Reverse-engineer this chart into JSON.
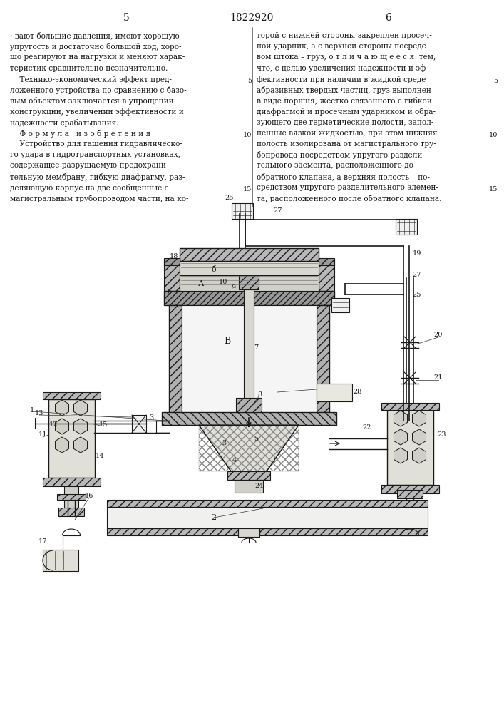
{
  "page_number_left": "5",
  "patent_number": "1822920",
  "page_number_right": "6",
  "bg_color": "#ffffff",
  "text_color": "#1a1a1a",
  "line_color": "#1a1a1a",
  "left_col_text": [
    "· вают большие давления, имеют хорошую",
    "упругость и достаточно большой ход, хоро-",
    "шо реагируют на нагрузки и меняют харак-",
    "теристик сравнительно незначительно.",
    "    Технико-экономический эффект пред-",
    "ложенного устройства по сравнению с базо-",
    "вым объектом заключается в упрощении",
    "конструкции, увеличении эффективности и",
    "надежности срабатывания.",
    "    Ф о р м у л а   и з о б р е т е н и я",
    "    Устройство для гашения гидравлическо-",
    "го удара в гидротранспортных установках,",
    "содержащее разрушаемую предохрани-",
    "тельную мембрану, гибкую диафрагму, раз-",
    "деляющую корпус на две сообщенные с",
    "магистральным трубопроводом части, на ко-"
  ],
  "right_col_text": [
    "торой с нижней стороны закреплен просеч-",
    "ной ударник, а с верхней стороны посредс-",
    "вом штока – груз, о т л и ч а ю щ е е с я  тем,",
    "что, с целью увеличения надежности и эф-",
    "фективности при наличии в жидкой среде",
    "абразивных твердых частиц, груз выполнен",
    "в виде поршня, жестко связанного с гибкой",
    "диафрагмой и просечным ударником и обра-",
    "зующего две герметические полости, запол-",
    "ненные вязкой жидкостью, при этом нижняя",
    "полость изолирована от магистрального тру-",
    "бопровода посредством упругого раздели-",
    "тельного заемента, расположенного до",
    "обратного клапана, а верхняя полость – по-",
    "средством упругого разделительного элемен-",
    "та, расположенного после обратного клапана."
  ]
}
